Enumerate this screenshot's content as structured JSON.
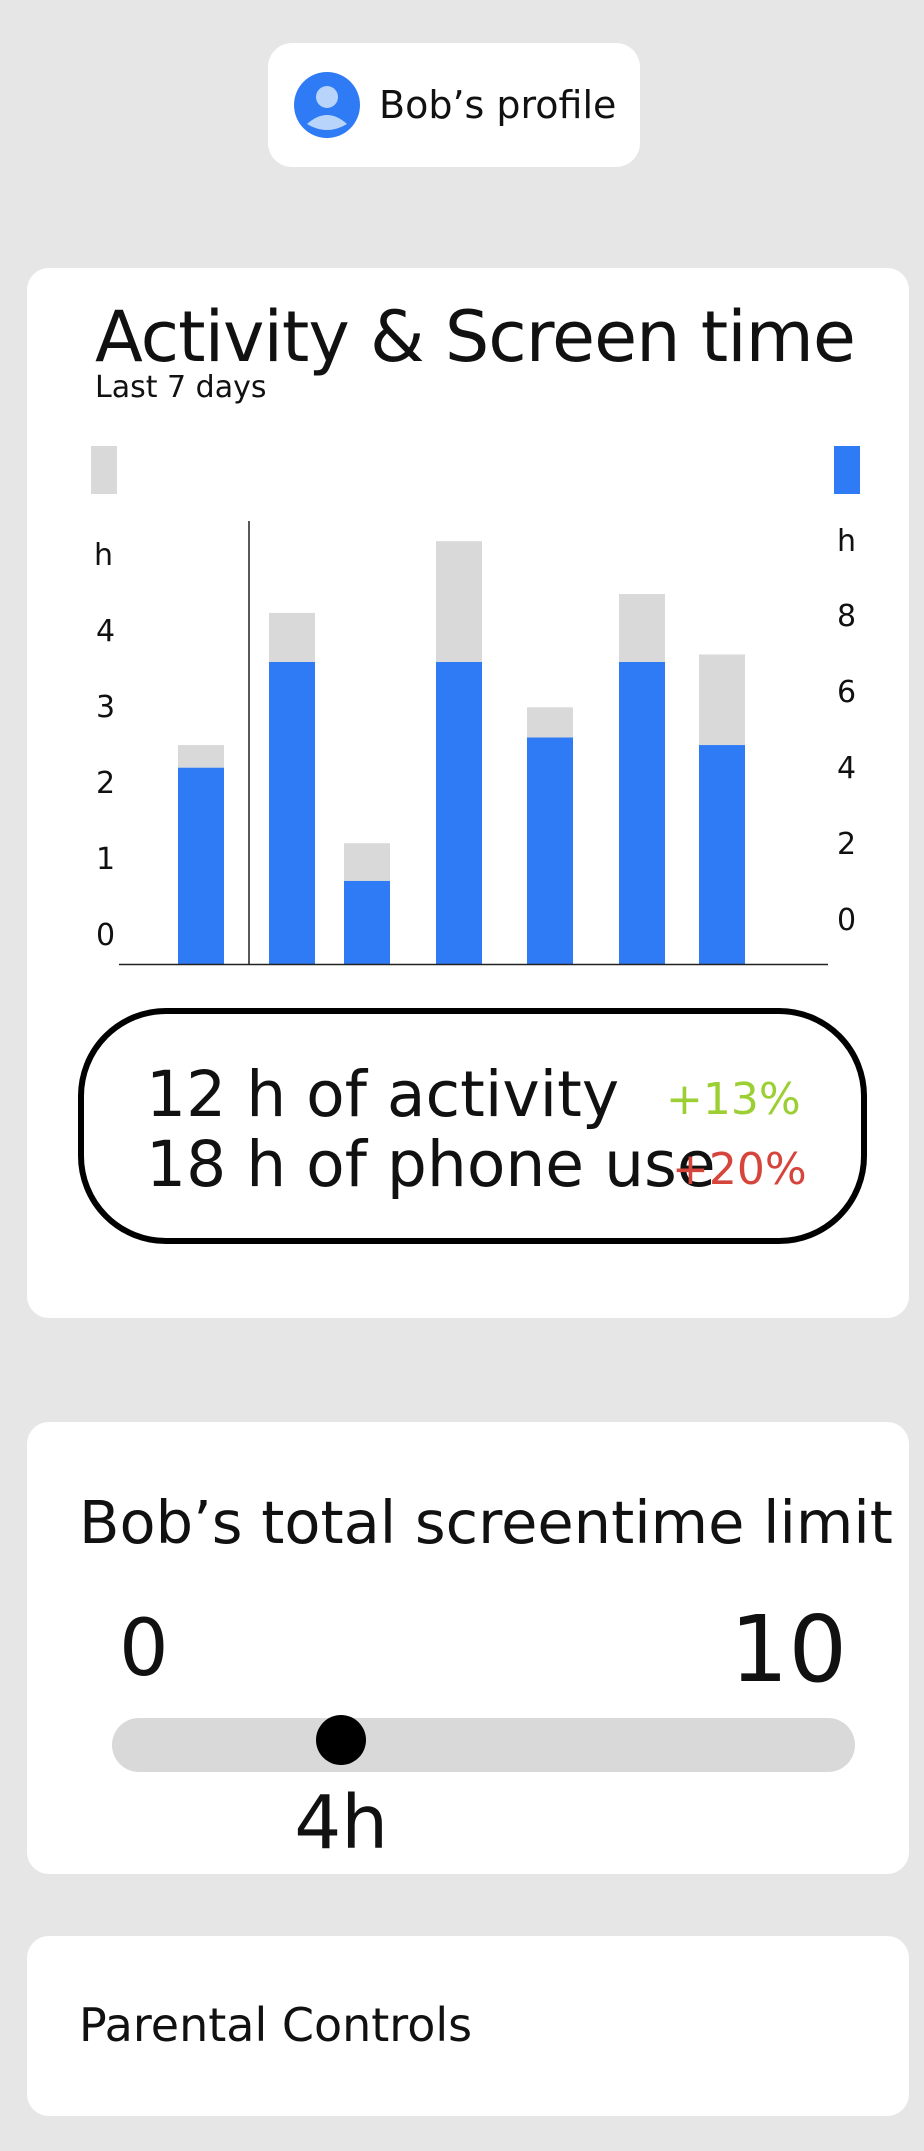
{
  "profile": {
    "name": "Bob’s profile",
    "avatar_icon": "user-avatar-icon",
    "accent": "#2f7bf5"
  },
  "activity": {
    "title": "Activity & Screen time",
    "subtitle": "Last 7 days",
    "summary": {
      "activity_text": "12 h of activity",
      "activity_change": "+13%",
      "phone_text": "18 h of phone use",
      "phone_change": "+20%",
      "positive_color": "#9ccf33",
      "negative_color": "#d6453c"
    }
  },
  "chart_data": {
    "type": "bar",
    "stacked": true,
    "grid": false,
    "left_axis": {
      "unit": "h",
      "ticks": [
        "0",
        "1",
        "2",
        "3",
        "4"
      ]
    },
    "right_axis": {
      "unit": "h",
      "ticks": [
        "0",
        "2",
        "4",
        "6",
        "8"
      ]
    },
    "categories": [
      "",
      "",
      "",
      "",
      "",
      "",
      ""
    ],
    "series": [
      {
        "color": "#2f7bf5",
        "values": [
          2.6,
          4.0,
          1.1,
          4.0,
          3.0,
          4.0,
          2.9
        ]
      },
      {
        "color": "#d9d9d9",
        "values": [
          0.3,
          0.65,
          0.5,
          1.6,
          0.4,
          0.9,
          1.2
        ]
      }
    ],
    "ylim": [
      0,
      4.6
    ]
  },
  "limit": {
    "title": "Bob’s total screentime limit",
    "min": "0",
    "max": "10",
    "value": 4,
    "value_label": "4h"
  },
  "parental": {
    "label": "Parental Controls"
  }
}
